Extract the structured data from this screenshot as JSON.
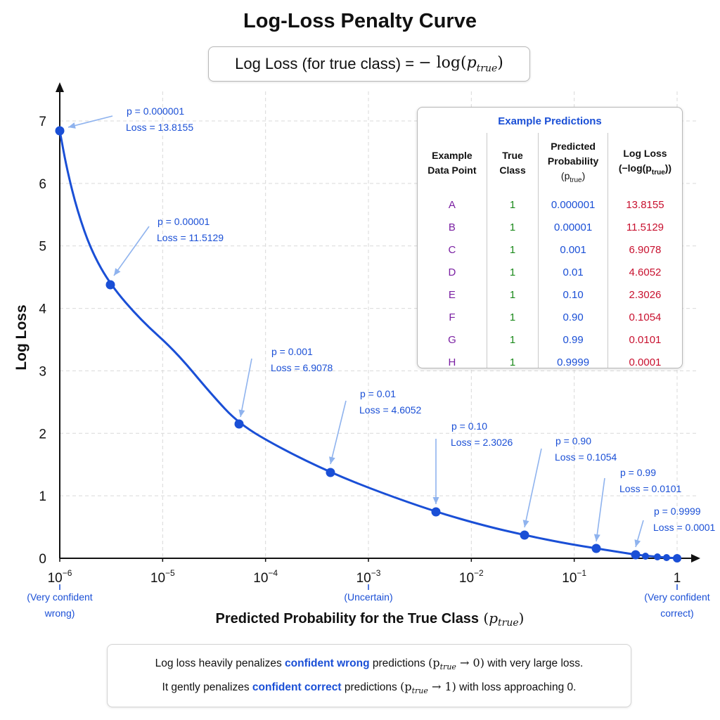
{
  "title": "Log-Loss Penalty Curve",
  "formula": {
    "text": "Log Loss (for true class) =",
    "math_op": "− log(",
    "var": "p",
    "sub": "true",
    "close": ")"
  },
  "chart_data": {
    "type": "line",
    "title": "Log-Loss Penalty Curve",
    "xlabel": "Predicted Probability for the True Class",
    "xlabel_var": "p",
    "xlabel_sub": "true",
    "ylabel": "Log Loss",
    "x_scale": "log",
    "x_ticks": [
      {
        "base": "10",
        "exp": "−6"
      },
      {
        "base": "10",
        "exp": "−5"
      },
      {
        "base": "10",
        "exp": "−4"
      },
      {
        "base": "10",
        "exp": "−3"
      },
      {
        "base": "10",
        "exp": "−2"
      },
      {
        "base": "10",
        "exp": "−1"
      },
      {
        "base": "1",
        "exp": ""
      }
    ],
    "y_ticks": [
      "0",
      "1",
      "2",
      "3",
      "4",
      "5",
      "6",
      "7"
    ],
    "ylim": [
      0,
      7
    ],
    "grid": true,
    "x_notes": [
      {
        "at_tick": 0,
        "lines": [
          "(Very confident",
          "wrong)"
        ]
      },
      {
        "at_tick": 3,
        "lines": [
          "(Uncertain)"
        ]
      },
      {
        "at_tick": 6,
        "lines": [
          "(Very confident",
          "correct)"
        ]
      }
    ],
    "points": [
      {
        "prob": "p = 0.000001",
        "loss": "Loss = 13.8155"
      },
      {
        "prob": "p = 0.00001",
        "loss": "Loss = 11.5129"
      },
      {
        "prob": "p = 0.001",
        "loss": "Loss = 6.9078"
      },
      {
        "prob": "p = 0.01",
        "loss": "Loss = 4.6052"
      },
      {
        "prob": "p = 0.10",
        "loss": "Loss = 2.3026"
      },
      {
        "prob": "p = 0.90",
        "loss": "Loss = 0.1054"
      },
      {
        "prob": "p = 0.99",
        "loss": "Loss = 0.0101"
      },
      {
        "prob": "p = 0.9999",
        "loss": "Loss = 0.0001"
      }
    ],
    "colors": {
      "curve": "#1a4fd6",
      "annotation": "#1a4fd6",
      "arrow": "#8fb3ee",
      "grid": "#d9d9d9",
      "axis": "#111111"
    }
  },
  "table": {
    "title": "Example Predictions",
    "headers": {
      "point": [
        "Example",
        "Data Point"
      ],
      "class": [
        "True",
        "Class"
      ],
      "prob": [
        "Predicted",
        "Probability",
        "(p",
        "true",
        ")"
      ],
      "loss": [
        "Log Loss",
        "(−log(p",
        "true",
        "))"
      ]
    },
    "rows": [
      {
        "label": "A",
        "true_class": "1",
        "prob": "0.000001",
        "loss": "13.8155"
      },
      {
        "label": "B",
        "true_class": "1",
        "prob": "0.00001",
        "loss": "11.5129"
      },
      {
        "label": "C",
        "true_class": "1",
        "prob": "0.001",
        "loss": "6.9078"
      },
      {
        "label": "D",
        "true_class": "1",
        "prob": "0.01",
        "loss": "4.6052"
      },
      {
        "label": "E",
        "true_class": "1",
        "prob": "0.10",
        "loss": "2.3026"
      },
      {
        "label": "F",
        "true_class": "1",
        "prob": "0.90",
        "loss": "0.1054"
      },
      {
        "label": "G",
        "true_class": "1",
        "prob": "0.99",
        "loss": "0.0101"
      },
      {
        "label": "H",
        "true_class": "1",
        "prob": "0.9999",
        "loss": "0.0001"
      }
    ]
  },
  "note": {
    "l1_a": "Log loss heavily penalizes ",
    "l1_b": "confident wrong",
    "l1_c": " predictions ",
    "l1_m": "→ 0)",
    "l1_d": " with very large loss.",
    "l2_a": "It gently penalizes ",
    "l2_b": "confident correct",
    "l2_c": " predictions ",
    "l2_m": "→ 1)",
    "l2_d": " with loss approaching 0.",
    "m_var": "(p",
    "m_sub": "true"
  }
}
